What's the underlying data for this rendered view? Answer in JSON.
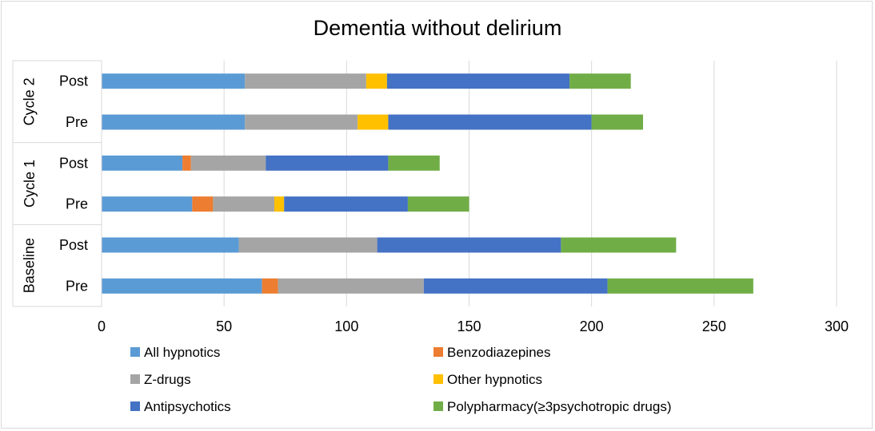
{
  "chart_data": {
    "type": "bar",
    "orientation": "horizontal",
    "stacked": true,
    "title": "Dementia without delirium",
    "xlabel": "",
    "ylabel": "",
    "xlim": [
      0,
      300
    ],
    "x_ticks": [
      0,
      50,
      100,
      150,
      200,
      250,
      300
    ],
    "grid": "vertical",
    "legend_position": "bottom",
    "groups": [
      {
        "label": "Baseline",
        "categories": [
          "Pre",
          "Post"
        ]
      },
      {
        "label": "Cycle 1",
        "categories": [
          "Pre",
          "Post"
        ]
      },
      {
        "label": "Cycle 2",
        "categories": [
          "Pre",
          "Post"
        ]
      }
    ],
    "categories": [
      "Baseline Pre",
      "Baseline Post",
      "Cycle 1 Pre",
      "Cycle 1 Post",
      "Cycle 2 Pre",
      "Cycle 2 Post"
    ],
    "series": [
      {
        "name": "All hypnotics",
        "color": "#5B9BD5",
        "values": [
          65.5,
          56,
          37,
          33,
          58.5,
          58.5
        ]
      },
      {
        "name": "Benzodiazepines",
        "color": "#ED7D31",
        "values": [
          6.5,
          0,
          8.5,
          3.5,
          0,
          0
        ]
      },
      {
        "name": "Z-drugs",
        "color": "#A5A5A5",
        "values": [
          59.5,
          56.5,
          25,
          30.5,
          46,
          49.5
        ]
      },
      {
        "name": "Other hypnotics",
        "color": "#FFC000",
        "values": [
          0,
          0,
          4,
          0,
          12.5,
          8.5
        ]
      },
      {
        "name": "Antipsychotics",
        "color": "#4472C4",
        "values": [
          75,
          75,
          50.5,
          50,
          83,
          74.5
        ]
      },
      {
        "name": "Polypharmacy(≥3psychotropic drugs)",
        "color": "#70AD47",
        "values": [
          59.5,
          47,
          25,
          21,
          21,
          25
        ]
      }
    ]
  }
}
